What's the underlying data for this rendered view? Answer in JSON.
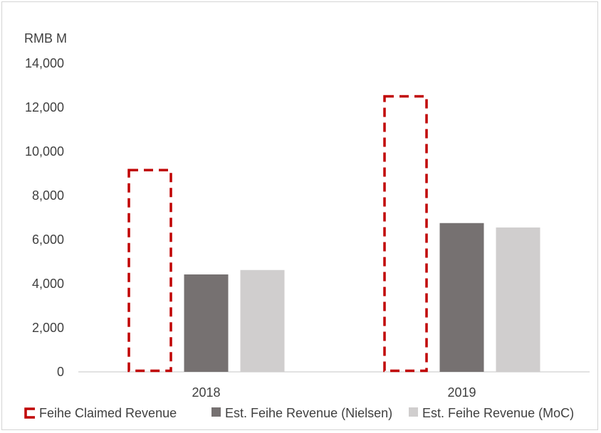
{
  "chart_data": {
    "type": "bar",
    "title": "",
    "unit_label": "RMB M",
    "xlabel": "",
    "ylabel": "",
    "ylim": [
      0,
      14000
    ],
    "yticks": [
      0,
      2000,
      4000,
      6000,
      8000,
      10000,
      12000,
      14000
    ],
    "ytick_labels": [
      "0",
      "2,000",
      "4,000",
      "6,000",
      "8,000",
      "10,000",
      "12,000",
      "14,000"
    ],
    "categories": [
      "2018",
      "2019"
    ],
    "grid": false,
    "legend_position": "bottom",
    "series": [
      {
        "name": "Feihe Claimed Revenue",
        "values": [
          9200,
          12550
        ],
        "style": "dashed-outline",
        "color": "#c00000"
      },
      {
        "name": "Est. Feihe Revenue (Nielsen)",
        "values": [
          4420,
          6750
        ],
        "style": "filled",
        "color": "#767171"
      },
      {
        "name": "Est. Feihe Revenue (MoC)",
        "values": [
          4620,
          6550
        ],
        "style": "filled",
        "color": "#d0cece"
      }
    ]
  }
}
